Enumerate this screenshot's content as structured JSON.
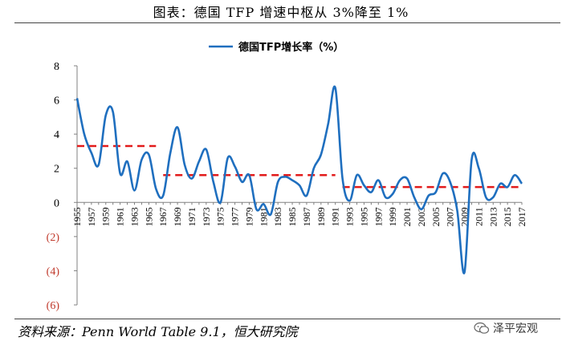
{
  "header": {
    "title": "图表：德国 TFP 增速中枢从 3%降至 1%"
  },
  "footer": {
    "source": "资料来源：Penn World Table 9.1，恒大研究院",
    "watermark": "泽平宏观"
  },
  "colors": {
    "line": "#1f6fbf",
    "dashed": "#e21b1b",
    "negative_tick": "#c0392b",
    "axis": "#808080"
  },
  "chart_data": {
    "type": "line",
    "title": "",
    "xlabel": "",
    "ylabel": "",
    "ylim": [
      -6,
      8
    ],
    "yticks": [
      {
        "value": 8,
        "label": "8"
      },
      {
        "value": 6,
        "label": "6"
      },
      {
        "value": 4,
        "label": "4"
      },
      {
        "value": 2,
        "label": "2"
      },
      {
        "value": 0,
        "label": "0"
      },
      {
        "value": -2,
        "label": "(2)"
      },
      {
        "value": -4,
        "label": "(4)"
      },
      {
        "value": -6,
        "label": "(6)"
      }
    ],
    "xlim": [
      1955,
      2017
    ],
    "xtick_labels": [
      "1955",
      "1957",
      "1959",
      "1961",
      "1963",
      "1965",
      "1967",
      "1969",
      "1971",
      "1973",
      "1975",
      "1977",
      "1979",
      "1981",
      "1983",
      "1985",
      "1987",
      "1989",
      "1991",
      "1993",
      "1995",
      "1997",
      "1999",
      "2001",
      "2003",
      "2005",
      "2007",
      "2009",
      "2011",
      "2013",
      "2015",
      "2017"
    ],
    "legend": {
      "label": "德国TFP增长率（%）",
      "position": "top-center"
    },
    "series": [
      {
        "name": "德国TFP增长率（%）",
        "x": [
          1955,
          1956,
          1957,
          1958,
          1959,
          1960,
          1961,
          1962,
          1963,
          1964,
          1965,
          1966,
          1967,
          1968,
          1969,
          1970,
          1971,
          1972,
          1973,
          1974,
          1975,
          1976,
          1977,
          1978,
          1979,
          1980,
          1981,
          1982,
          1983,
          1984,
          1985,
          1986,
          1987,
          1988,
          1989,
          1990,
          1991,
          1992,
          1993,
          1994,
          1995,
          1996,
          1997,
          1998,
          1999,
          2000,
          2001,
          2002,
          2003,
          2004,
          2005,
          2006,
          2007,
          2008,
          2009,
          2010,
          2011,
          2012,
          2013,
          2014,
          2015,
          2016,
          2017
        ],
        "values": [
          6.1,
          4.0,
          2.9,
          2.2,
          5.1,
          5.3,
          1.7,
          2.4,
          0.7,
          2.5,
          2.8,
          0.8,
          0.4,
          2.9,
          4.4,
          2.2,
          1.4,
          2.4,
          3.1,
          1.2,
          0.0,
          2.6,
          2.1,
          1.2,
          1.6,
          -0.4,
          -0.1,
          -0.7,
          1.2,
          1.5,
          1.3,
          1.0,
          0.4,
          2.0,
          2.8,
          4.6,
          6.7,
          1.4,
          0.1,
          1.6,
          1.0,
          0.6,
          1.3,
          0.3,
          0.5,
          1.3,
          1.4,
          0.3,
          -0.4,
          0.4,
          0.6,
          1.7,
          1.2,
          -0.5,
          -4.1,
          2.5,
          2.0,
          0.3,
          0.3,
          1.1,
          0.9,
          1.6,
          1.1
        ]
      }
    ],
    "reference_lines": [
      {
        "name": "mean-1955-1966",
        "x_start": 1955,
        "x_end": 1966,
        "value": 3.3
      },
      {
        "name": "mean-1967-1991",
        "x_start": 1967,
        "x_end": 1991,
        "value": 1.6
      },
      {
        "name": "mean-1992-2017",
        "x_start": 1992,
        "x_end": 2017,
        "value": 0.9
      }
    ]
  }
}
